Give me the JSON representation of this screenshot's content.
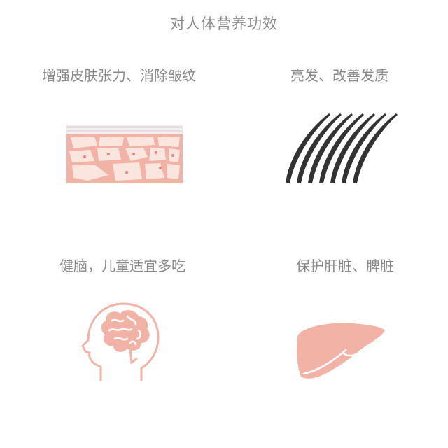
{
  "page": {
    "title": "对人体营养功效"
  },
  "benefits": [
    {
      "label": "增强皮肤张力、消除皱纹",
      "icon": "skin-cells-icon"
    },
    {
      "label": "亮发、改善发质",
      "icon": "hair-strands-icon"
    },
    {
      "label": "健脑，儿童适宜多吃",
      "icon": "brain-head-icon"
    },
    {
      "label": "保护肝脏、脾脏",
      "icon": "liver-icon"
    }
  ],
  "colors": {
    "text": "#8a8a8a",
    "accent": "#f2b2a6",
    "hair": "#3a3a3a"
  }
}
